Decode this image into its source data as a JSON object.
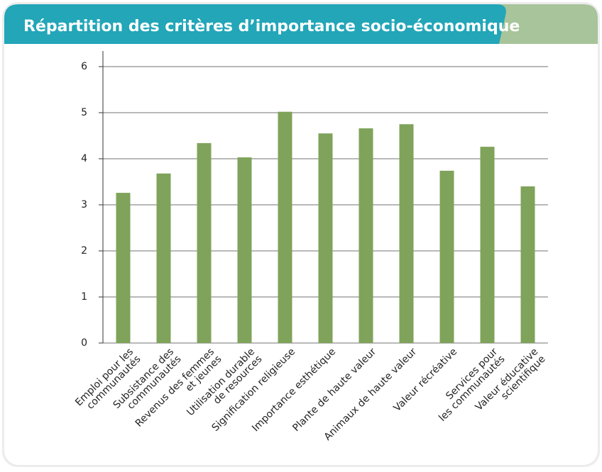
{
  "chart_data": {
    "type": "bar",
    "title": "Répartition des critères d’importance socio-économique",
    "categories": [
      [
        "Emploi pour les",
        "communautés"
      ],
      [
        "Subsistance des",
        "communautés"
      ],
      [
        "Revenus des femmes",
        "et jeunes"
      ],
      [
        "Utilisation durable",
        "de resources"
      ],
      [
        "Signification religieuse"
      ],
      [
        "Importance esthétique"
      ],
      [
        "Plante de haute valeur"
      ],
      [
        "Animaux de haute valeur"
      ],
      [
        "Valeur récréative"
      ],
      [
        "Services pour",
        "les communautés"
      ],
      [
        "Valeur éducative",
        "scientifique"
      ]
    ],
    "values": [
      3.26,
      3.68,
      4.34,
      4.03,
      5.02,
      4.55,
      4.66,
      4.75,
      3.74,
      4.26,
      3.4
    ],
    "color": "#7fa35a",
    "ylim": [
      0,
      6
    ],
    "yticks": [
      0,
      1,
      2,
      3,
      4,
      5,
      6
    ],
    "grid": true
  }
}
